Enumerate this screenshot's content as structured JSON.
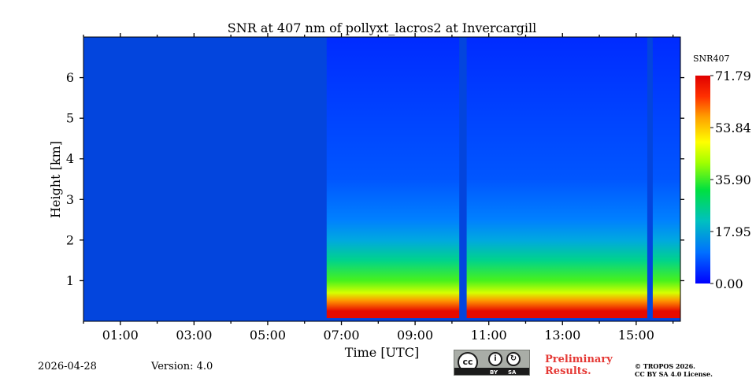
{
  "chart_data": {
    "type": "heatmap",
    "title": "SNR at 407 nm of pollyxt_lacros2 at Invercargill",
    "xlabel": "Time [UTC]",
    "ylabel": "Height [km]",
    "xlim_hours": [
      0.0,
      16.2
    ],
    "ylim_km": [
      0.0,
      7.0
    ],
    "x_ticks": [
      {
        "value": 1,
        "label": "01:00"
      },
      {
        "value": 3,
        "label": "03:00"
      },
      {
        "value": 5,
        "label": "05:00"
      },
      {
        "value": 7,
        "label": "07:00"
      },
      {
        "value": 9,
        "label": "09:00"
      },
      {
        "value": 11,
        "label": "11:00"
      },
      {
        "value": 13,
        "label": "13:00"
      },
      {
        "value": 15,
        "label": "15:00"
      }
    ],
    "y_ticks": [
      {
        "value": 1,
        "label": "1"
      },
      {
        "value": 2,
        "label": "2"
      },
      {
        "value": 3,
        "label": "3"
      },
      {
        "value": 4,
        "label": "4"
      },
      {
        "value": 5,
        "label": "5"
      },
      {
        "value": 6,
        "label": "6"
      }
    ],
    "colorbar": {
      "label": "SNR407",
      "min": 0.0,
      "max": 71.79,
      "ticks": [
        {
          "value": 0.0,
          "label": "0.00"
        },
        {
          "value": 17.95,
          "label": "17.95"
        },
        {
          "value": 35.9,
          "label": "35.90"
        },
        {
          "value": 53.84,
          "label": "53.84"
        },
        {
          "value": 71.79,
          "label": "71.79"
        }
      ],
      "colormap": [
        "#0000ff",
        "#0080ff",
        "#00c8c8",
        "#00e040",
        "#80ff00",
        "#ffff00",
        "#ffa000",
        "#ff3000",
        "#e00000"
      ]
    },
    "measurement_segments": [
      {
        "start_h": 6.6,
        "end_h": 10.2
      },
      {
        "start_h": 10.4,
        "end_h": 15.3
      },
      {
        "start_h": 15.45,
        "end_h": 16.2
      }
    ],
    "snr_profile": [
      {
        "height_km": 0.05,
        "snr": 70
      },
      {
        "height_km": 0.25,
        "snr": 70
      },
      {
        "height_km": 0.5,
        "snr": 55
      },
      {
        "height_km": 0.7,
        "snr": 42
      },
      {
        "height_km": 1.0,
        "snr": 32
      },
      {
        "height_km": 1.5,
        "snr": 22
      },
      {
        "height_km": 2.0,
        "snr": 14
      },
      {
        "height_km": 2.5,
        "snr": 9
      },
      {
        "height_km": 3.5,
        "snr": 6
      },
      {
        "height_km": 7.0,
        "snr": 3
      }
    ]
  },
  "footer": {
    "date": "2026-04-28",
    "version": "Version: 4.0",
    "preliminary_line1": "Preliminary",
    "preliminary_line2": "Results.",
    "copyright_line1": "© TROPOS 2026.",
    "copyright_line2": "CC BY SA 4.0 License.",
    "license_badge": {
      "cc": "cc",
      "by": "BY",
      "sa": "SA"
    }
  }
}
